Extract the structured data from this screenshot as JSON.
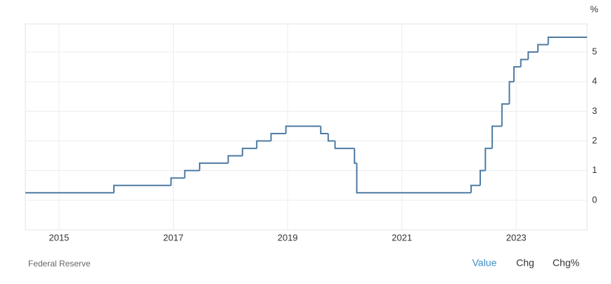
{
  "chart_data": {
    "type": "line",
    "step": "post",
    "color": "#4f7ba3",
    "grid": true,
    "y_unit": "%",
    "source": "Federal Reserve",
    "tabs": [
      "Value",
      "Chg",
      "Chg%"
    ],
    "active_tab": 0,
    "x": [
      2014.41,
      2015.96,
      2016.96,
      2017.2,
      2017.46,
      2017.96,
      2018.21,
      2018.46,
      2018.71,
      2018.97,
      2019.58,
      2019.71,
      2019.83,
      2020.17,
      2020.21,
      2022.21,
      2022.37,
      2022.46,
      2022.58,
      2022.75,
      2022.88,
      2022.96,
      2023.08,
      2023.21,
      2023.38,
      2023.56,
      2024.24
    ],
    "values": [
      0.25,
      0.5,
      0.75,
      1.0,
      1.25,
      1.5,
      1.75,
      2.0,
      2.25,
      2.5,
      2.25,
      2.0,
      1.75,
      1.25,
      0.25,
      0.5,
      1.0,
      1.75,
      2.5,
      3.25,
      4.0,
      4.5,
      4.75,
      5.0,
      5.25,
      5.5,
      5.5
    ],
    "xlim": [
      2014.41,
      2024.24
    ],
    "xticks": [
      2015,
      2017,
      2019,
      2021,
      2023
    ],
    "ylim": [
      -1,
      5.95
    ],
    "yticks": [
      0,
      1,
      2,
      3,
      4,
      5
    ]
  }
}
